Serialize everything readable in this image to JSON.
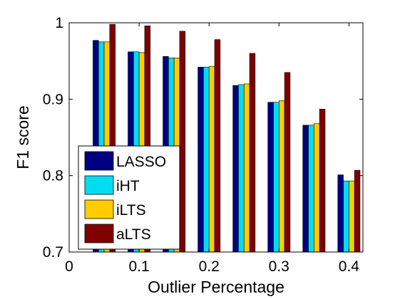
{
  "chart_data": {
    "type": "bar",
    "title": "",
    "xlabel": "Outlier Percentage",
    "ylabel": "F1 score",
    "x": [
      0.05,
      0.1,
      0.15,
      0.2,
      0.25,
      0.3,
      0.35,
      0.4
    ],
    "xlim": [
      0,
      0.42
    ],
    "ylim": [
      0.7,
      1.0
    ],
    "xticks": [
      "0",
      "0.1",
      "0.2",
      "0.3",
      "0.4"
    ],
    "xtick_values": [
      0,
      0.1,
      0.2,
      0.3,
      0.4
    ],
    "yticks": [
      "0.7",
      "0.8",
      "0.9",
      "1"
    ],
    "ytick_values": [
      0.7,
      0.8,
      0.9,
      1.0
    ],
    "grid": false,
    "legend_position": "bottom-left",
    "series": [
      {
        "name": "LASSO",
        "color": "#000080",
        "values": [
          0.977,
          0.962,
          0.956,
          0.942,
          0.918,
          0.896,
          0.866,
          0.801
        ]
      },
      {
        "name": "iHT",
        "color": "#00DDF0",
        "values": [
          0.975,
          0.962,
          0.954,
          0.942,
          0.919,
          0.896,
          0.866,
          0.793
        ]
      },
      {
        "name": "iLTS",
        "color": "#FFCC00",
        "values": [
          0.975,
          0.961,
          0.954,
          0.943,
          0.92,
          0.898,
          0.868,
          0.793
        ]
      },
      {
        "name": "aLTS",
        "color": "#800000",
        "values": [
          0.998,
          0.996,
          0.989,
          0.978,
          0.96,
          0.935,
          0.887,
          0.807
        ]
      }
    ]
  }
}
